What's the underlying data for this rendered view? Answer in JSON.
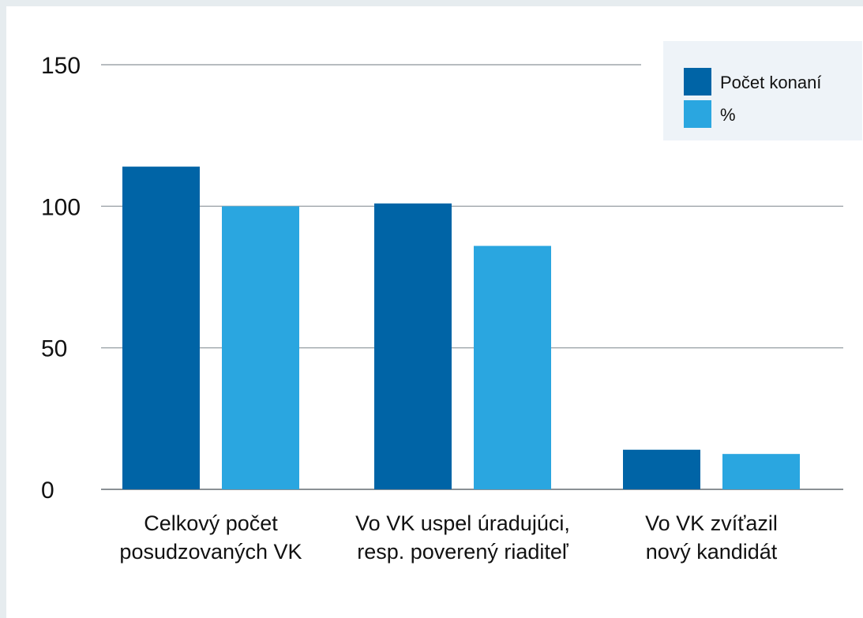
{
  "chart_data": {
    "type": "bar",
    "categories": [
      [
        "Celkový počet",
        "posudzovaných VK"
      ],
      [
        "Vo VK uspel úradujúci,",
        "resp. poverený riaditeľ"
      ],
      [
        "Vo VK zvíťazil",
        "nový kandidát"
      ]
    ],
    "series": [
      {
        "name": "Počet konaní",
        "values": [
          114,
          101,
          14
        ]
      },
      {
        "name": "%",
        "values": [
          100,
          86,
          12.5
        ]
      }
    ],
    "yticks": [
      0,
      50,
      100,
      150
    ],
    "ylim": [
      0,
      150
    ],
    "grid": true,
    "legend_position": "top-right",
    "colors": {
      "series": [
        "#0064a6",
        "#2aa6e0"
      ],
      "grid": "#9fa6ab",
      "legend_bg": "#eef3f8"
    }
  }
}
